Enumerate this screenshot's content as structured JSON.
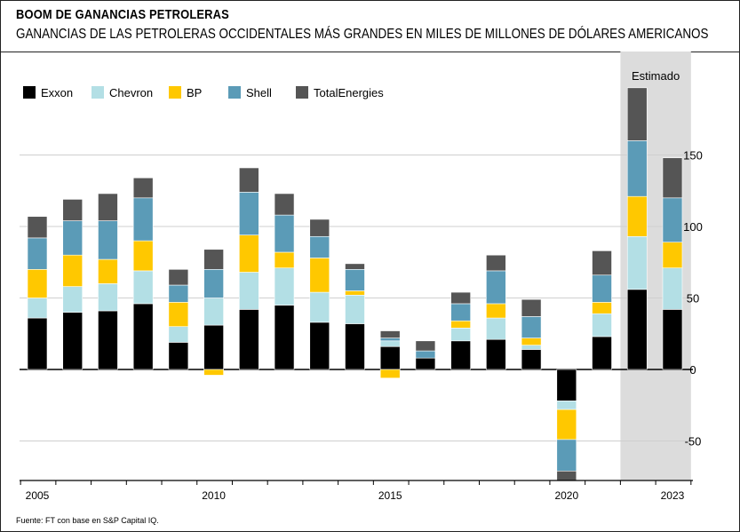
{
  "header": {
    "title": "BOOM DE GANANCIAS PETROLERAS",
    "subtitle": "GANANCIAS DE LAS PETROLERAS OCCIDENTALES MÁS GRANDES EN MILES DE MILLONES DE DÓLARES AMERICANOS"
  },
  "footer": {
    "source": "Fuente: FT con base en S&P Capital IQ."
  },
  "chart_data": {
    "type": "bar",
    "stacked": true,
    "categories": [
      "2005",
      "2006",
      "2007",
      "2008",
      "2009",
      "2010",
      "2011",
      "2012",
      "2013",
      "2014",
      "2015",
      "2016",
      "2017",
      "2018",
      "2019",
      "2020",
      "2021",
      "2022",
      "2023"
    ],
    "x_tick_labels": [
      {
        "category": "2005",
        "label": "2005"
      },
      {
        "category": "2010",
        "label": "2010"
      },
      {
        "category": "2015",
        "label": "2015"
      },
      {
        "category": "2020",
        "label": "2020"
      },
      {
        "category": "2023",
        "label": "2023"
      }
    ],
    "series": [
      {
        "name": "Exxon",
        "color": "#000000",
        "values": [
          36,
          40,
          41,
          46,
          19,
          31,
          42,
          45,
          33,
          32,
          16,
          8,
          20,
          21,
          14,
          -22,
          23,
          56,
          42
        ]
      },
      {
        "name": "Chevron",
        "color": "#b3dfe5",
        "values": [
          14,
          18,
          19,
          23,
          11,
          19,
          26,
          26,
          21,
          20,
          4,
          0,
          9,
          15,
          3,
          -6,
          16,
          37,
          29
        ]
      },
      {
        "name": "BP",
        "color": "#ffc800",
        "values": [
          20,
          22,
          17,
          21,
          17,
          -4,
          26,
          11,
          24,
          3,
          -6,
          0,
          5,
          10,
          5,
          -21,
          8,
          28,
          18
        ]
      },
      {
        "name": "Shell",
        "color": "#5b9bb7",
        "values": [
          22,
          24,
          27,
          30,
          12,
          20,
          30,
          26,
          15,
          15,
          2,
          5,
          12,
          23,
          15,
          -22,
          19,
          39,
          31
        ]
      },
      {
        "name": "TotalEnergies",
        "color": "#555555",
        "values": [
          15,
          15,
          19,
          14,
          11,
          14,
          17,
          15,
          12,
          4,
          5,
          7,
          8,
          11,
          12,
          -7,
          17,
          37,
          28
        ]
      }
    ],
    "ylim": [
      -78,
      200
    ],
    "yticks": [
      -50,
      0,
      50,
      100,
      150
    ],
    "ytick_labels": [
      "-50",
      "0",
      "50",
      "100",
      "150"
    ],
    "y_axis_position": "right",
    "grid": true,
    "legend_position": "top-left",
    "shaded_region": {
      "from": "2022",
      "to": "2023",
      "label": "Estimado",
      "color": "#dcdcdc"
    }
  }
}
